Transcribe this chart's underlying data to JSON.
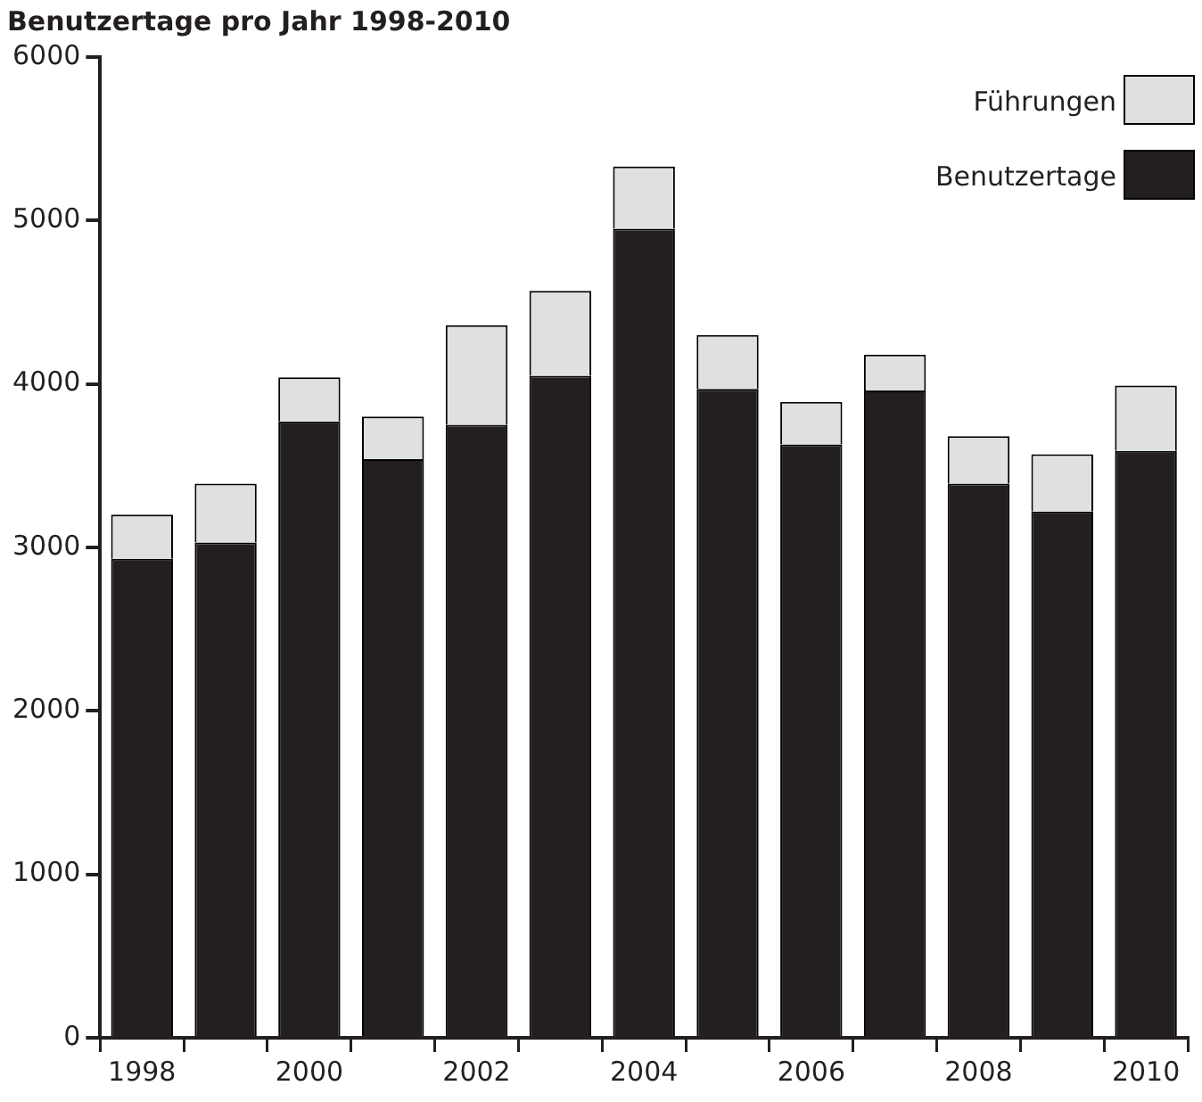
{
  "chart_data": {
    "type": "bar",
    "title": "Benutzertage pro Jahr 1998-2010",
    "categories": [
      "1998",
      null,
      "2000",
      null,
      "2002",
      null,
      "2004",
      null,
      "2006",
      null,
      "2008",
      null,
      "2010"
    ],
    "series": [
      {
        "name": "Benutzertage",
        "color": "#231f20",
        "values": [
          2930,
          3030,
          3770,
          3540,
          3750,
          4050,
          4950,
          3970,
          3630,
          3960,
          3390,
          3220,
          3590
        ]
      },
      {
        "name": "Führungen",
        "color": "#dfe0e2",
        "values": [
          270,
          360,
          270,
          260,
          610,
          520,
          380,
          330,
          260,
          220,
          290,
          350,
          400
        ]
      }
    ],
    "stacked": true,
    "ylim": [
      0,
      6000
    ],
    "yticks": [
      0,
      1000,
      2000,
      3000,
      4000,
      5000,
      6000
    ],
    "grid": false,
    "legend": "top right"
  }
}
